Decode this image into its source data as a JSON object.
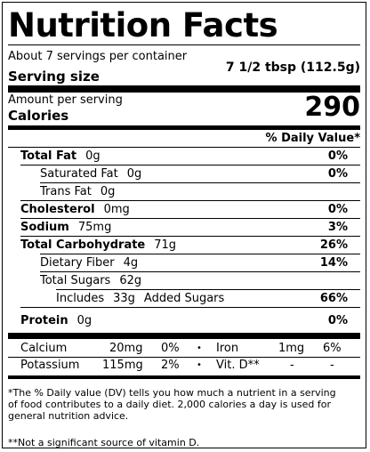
{
  "title": "Nutrition Facts",
  "servings_per_container": "About 7 servings per container",
  "serving_size_label": "Serving size",
  "serving_size_value": "7 1/2 tbsp (112.5g)",
  "amount_per_serving": "Amount per serving",
  "calories_label": "Calories",
  "calories_value": "290",
  "daily_value_header": "% Daily Value*",
  "nutrients": {
    "total_fat": {
      "label": "Total Fat",
      "amount": "0g",
      "dv": "0%"
    },
    "saturated_fat": {
      "label": "Saturated Fat",
      "amount": "0g",
      "dv": "0%"
    },
    "trans_fat": {
      "label": "Trans Fat",
      "amount": "0g"
    },
    "cholesterol": {
      "label": "Cholesterol",
      "amount": "0mg",
      "dv": "0%"
    },
    "sodium": {
      "label": "Sodium",
      "amount": "75mg",
      "dv": "3%"
    },
    "total_carbohydrate": {
      "label": "Total Carbohydrate",
      "amount": "71g",
      "dv": "26%"
    },
    "dietary_fiber": {
      "label": "Dietary Fiber",
      "amount": "4g",
      "dv": "14%"
    },
    "total_sugars": {
      "label": "Total Sugars",
      "amount": "62g"
    },
    "added_sugars": {
      "prefix": "Includes",
      "amount": "33g",
      "suffix": "Added Sugars",
      "dv": "66%"
    },
    "protein": {
      "label": "Protein",
      "amount": "0g",
      "dv": "0%"
    }
  },
  "vitamins": {
    "calcium": {
      "label": "Calcium",
      "amount": "20mg",
      "dv": "0%"
    },
    "iron": {
      "label": "Iron",
      "amount": "1mg",
      "dv": "6%"
    },
    "potassium": {
      "label": "Potassium",
      "amount": "115mg",
      "dv": "2%"
    },
    "vitamin_d": {
      "label": "Vit. D**",
      "amount": "-",
      "dv": "-"
    }
  },
  "separator_dot": "•",
  "footnote_dv": "*The % Daily value (DV) tells you how much a nutrient in a serving of food contributes to a daily diet. 2,000 calories a day is used for general nutrition advice.",
  "footnote_vitd": "**Not a significant source of vitamin D."
}
